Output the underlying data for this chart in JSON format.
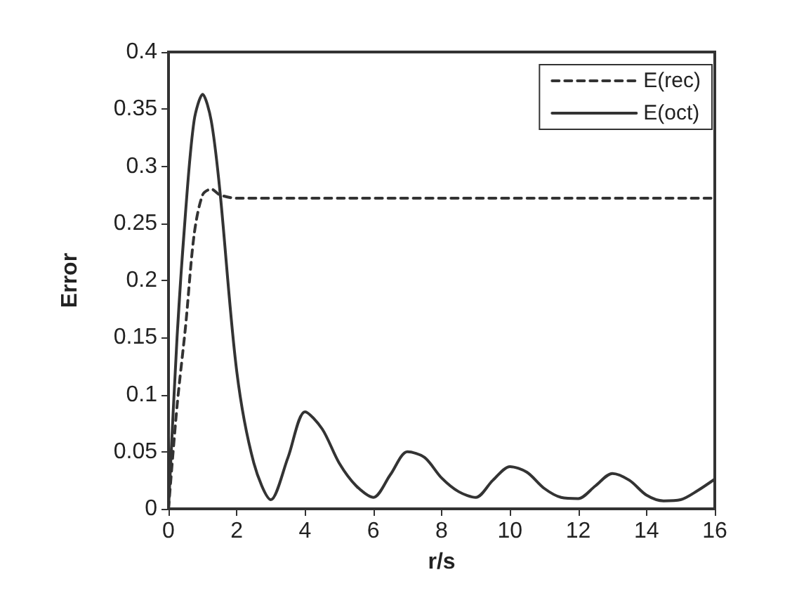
{
  "chart_data": {
    "type": "line",
    "xlabel": "r/s",
    "ylabel": "Error",
    "xlim": [
      0,
      16
    ],
    "xticks": [
      0,
      2,
      4,
      6,
      8,
      10,
      12,
      14,
      16
    ],
    "ylim": [
      0,
      0.4
    ],
    "yticks": [
      0,
      0.05,
      0.1,
      0.15,
      0.2,
      0.25,
      0.3,
      0.35,
      0.4
    ],
    "grid": false,
    "legend": "top right",
    "marker": "none",
    "series": [
      {
        "name": "E(rec)",
        "color": "#333333",
        "line_style": "dashed",
        "x": [
          0,
          0.25,
          0.5,
          0.75,
          1,
          1.25,
          1.5,
          2,
          4,
          8,
          12,
          16
        ],
        "values": [
          0,
          0.09,
          0.16,
          0.24,
          0.275,
          0.28,
          0.275,
          0.272,
          0.272,
          0.272,
          0.272,
          0.272
        ]
      },
      {
        "name": "E(oct)",
        "color": "#333333",
        "line_style": "solid",
        "x": [
          0,
          0.25,
          0.5,
          0.75,
          1,
          1.25,
          1.5,
          2,
          2.5,
          3,
          3.5,
          4,
          4.5,
          5,
          5.5,
          6,
          6.5,
          7,
          7.5,
          8,
          8.5,
          9,
          9.5,
          10,
          10.5,
          11,
          11.5,
          12,
          12.5,
          13,
          13.5,
          14,
          14.5,
          15,
          15.5,
          16
        ],
        "values": [
          0,
          0.15,
          0.26,
          0.34,
          0.363,
          0.34,
          0.28,
          0.12,
          0.04,
          0.008,
          0.045,
          0.085,
          0.07,
          0.04,
          0.02,
          0.01,
          0.03,
          0.05,
          0.045,
          0.027,
          0.015,
          0.01,
          0.025,
          0.037,
          0.032,
          0.018,
          0.01,
          0.009,
          0.02,
          0.031,
          0.025,
          0.012,
          0.007,
          0.008,
          0.016,
          0.026
        ]
      }
    ]
  }
}
